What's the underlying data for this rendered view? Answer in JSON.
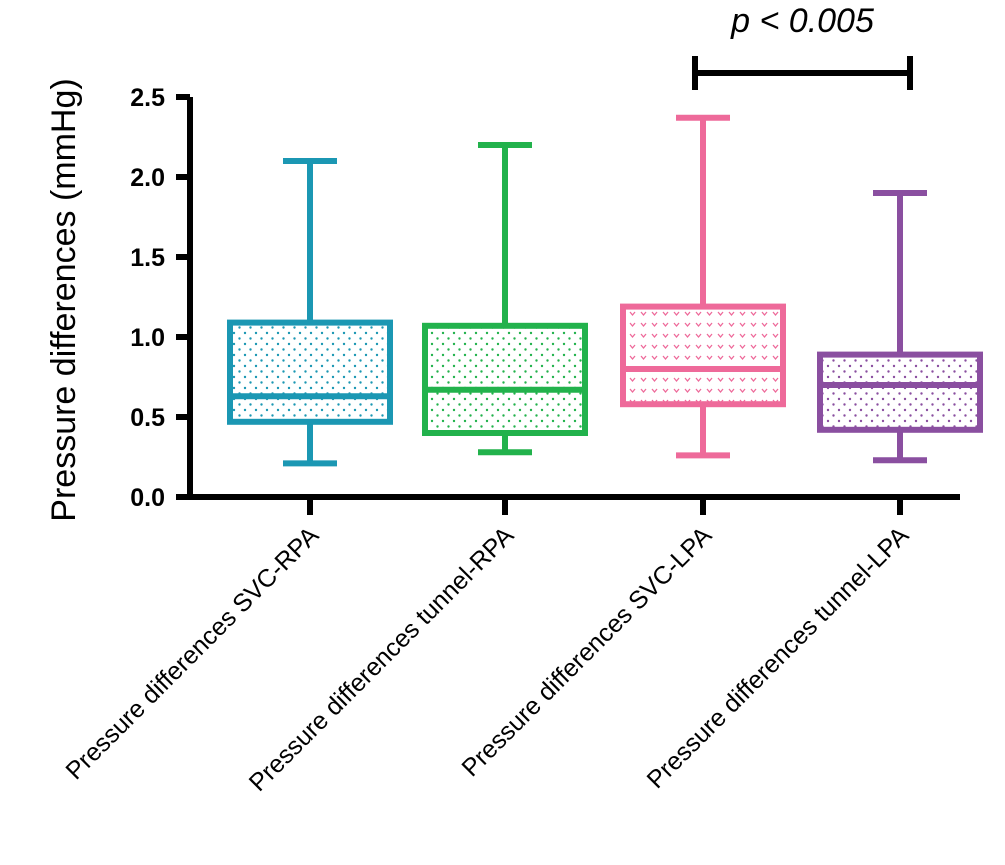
{
  "chart_data": {
    "type": "box",
    "title": "",
    "xlabel": "",
    "ylabel": "Pressure differences (mmHg)",
    "ylim": [
      0,
      2.5
    ],
    "yticks": [
      "0.0",
      "0.5",
      "1.0",
      "1.5",
      "2.0",
      "2.5"
    ],
    "grid": false,
    "legend": "none",
    "categories": [
      "Pressure differences SVC-RPA",
      "Pressure differences tunnel-RPA",
      "Pressure differences SVC-LPA",
      "Pressure differences tunnel-LPA"
    ],
    "series": [
      {
        "name": "Pressure differences SVC-RPA",
        "min": 0.21,
        "q1": 0.47,
        "median": 0.63,
        "q3": 1.09,
        "max": 2.1,
        "color": "#1b97b3",
        "pattern": "dots"
      },
      {
        "name": "Pressure differences tunnel-RPA",
        "min": 0.28,
        "q1": 0.4,
        "median": 0.67,
        "q3": 1.07,
        "max": 2.2,
        "color": "#22b24c",
        "pattern": "dots"
      },
      {
        "name": "Pressure differences SVC-LPA",
        "min": 0.26,
        "q1": 0.58,
        "median": 0.8,
        "q3": 1.19,
        "max": 2.37,
        "color": "#ee6a9a",
        "pattern": "hearts"
      },
      {
        "name": "Pressure differences tunnel-LPA",
        "min": 0.23,
        "q1": 0.42,
        "median": 0.7,
        "q3": 0.89,
        "max": 1.9,
        "color": "#8a4fa0",
        "pattern": "dots"
      }
    ],
    "annotations": [
      {
        "text": "p < 0.005",
        "from_category": 2,
        "to_category": 3
      }
    ]
  }
}
